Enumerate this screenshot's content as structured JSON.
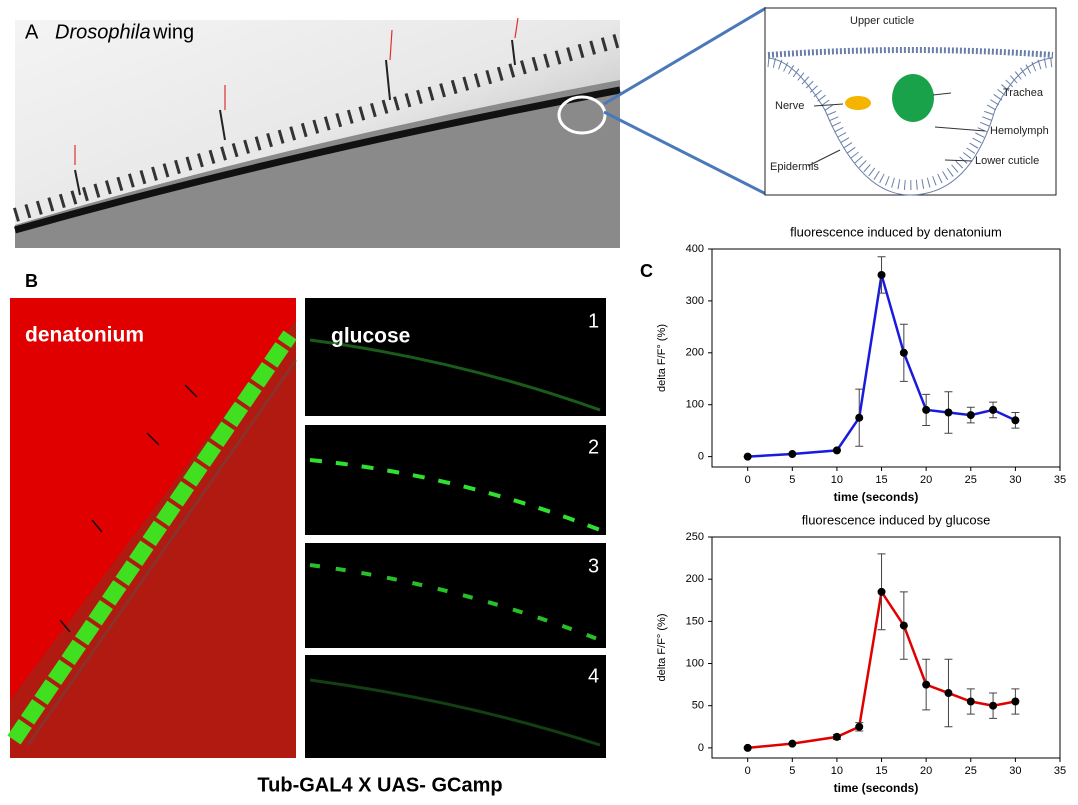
{
  "figure": {
    "panel_a": {
      "letter": "A",
      "species": "Drosophila",
      "word": "wing"
    },
    "diagram": {
      "labels": [
        "Upper cuticle",
        "Nerve",
        "Trachea",
        "Hemolymph",
        "Epidermis",
        "Lower cuticle"
      ]
    },
    "panel_b": {
      "letter": "B",
      "left_label": "denatonium",
      "right_label": "glucose",
      "frames": [
        "1",
        "2",
        "3",
        "4"
      ],
      "caption": "Tub-GAL4 X UAS- GCamp"
    },
    "panel_c": {
      "letter": "C"
    }
  },
  "chart_data": [
    {
      "type": "line",
      "title": "fluorescence induced by denatonium",
      "x_label": "time (seconds)",
      "y_label": "delta F/F° (%)",
      "x": [
        0,
        5,
        10,
        12.5,
        15,
        17.5,
        20,
        22.5,
        25,
        27.5,
        30
      ],
      "values": [
        0,
        5,
        12,
        75,
        350,
        200,
        90,
        85,
        80,
        90,
        70
      ],
      "errors": [
        0,
        0,
        0,
        55,
        35,
        55,
        30,
        40,
        15,
        15,
        15
      ],
      "color": "#1a1adf",
      "xlim": [
        -4,
        35
      ],
      "xticks": [
        0,
        5,
        10,
        15,
        20,
        25,
        30,
        35
      ],
      "ylim": [
        -20,
        400
      ],
      "yticks": [
        0,
        100,
        200,
        300,
        400
      ]
    },
    {
      "type": "line",
      "title": "fluorescence induced by glucose",
      "x_label": "time (seconds)",
      "y_label": "delta F/F° (%)",
      "x": [
        0,
        5,
        10,
        12.5,
        15,
        17.5,
        20,
        22.5,
        25,
        27.5,
        30
      ],
      "values": [
        0,
        5,
        13,
        25,
        185,
        145,
        75,
        65,
        55,
        50,
        55
      ],
      "errors": [
        0,
        0,
        3,
        5,
        45,
        40,
        30,
        40,
        15,
        15,
        15
      ],
      "color": "#e00000",
      "xlim": [
        -4,
        35
      ],
      "xticks": [
        0,
        5,
        10,
        15,
        20,
        25,
        30,
        35
      ],
      "ylim": [
        -12,
        250
      ],
      "yticks": [
        0,
        50,
        100,
        150,
        200,
        250
      ]
    }
  ]
}
